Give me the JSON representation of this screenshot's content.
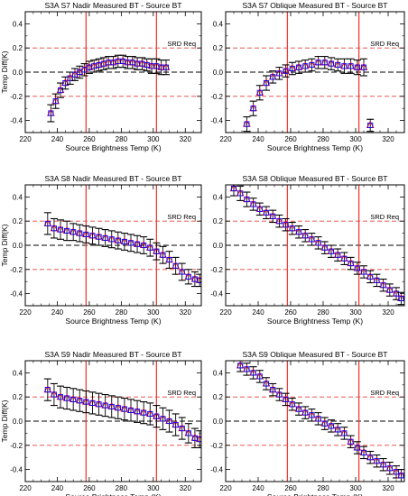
{
  "figure": {
    "srd_label": "SRD Req"
  },
  "style": {
    "error_bar": "#000000",
    "red_marker": "#ff0000",
    "blue_marker": "#0000ff",
    "vertical_line": "#e8413a",
    "srd_line": "#e8413a",
    "zero_line": "#000000"
  },
  "chart_data": [
    {
      "type": "scatter",
      "title": "S3A S7 Nadir Measured BT - Source BT",
      "xlabel": "Source Brightness Temp (K)",
      "ylabel": "Temp Diff(K)",
      "xlim": [
        220,
        330
      ],
      "ylim": [
        -0.5,
        0.5
      ],
      "xticks": [
        220,
        240,
        260,
        280,
        300,
        320
      ],
      "yticks": [
        -0.4,
        -0.2,
        0.0,
        0.2,
        0.4
      ],
      "vlines": [
        258,
        302
      ],
      "hlines_dashed_red": [
        0.2,
        -0.2
      ],
      "hline_dashed_black": 0.0,
      "annotation": "SRD Req",
      "x": [
        236,
        239,
        242,
        245,
        248,
        251,
        254,
        257,
        260,
        263,
        266,
        269,
        272,
        275,
        278,
        281,
        284,
        287,
        290,
        293,
        296,
        299,
        302,
        305,
        308
      ],
      "y": [
        -0.34,
        -0.24,
        -0.15,
        -0.09,
        -0.05,
        -0.02,
        0.0,
        0.02,
        0.04,
        0.05,
        0.06,
        0.07,
        0.08,
        0.08,
        0.09,
        0.09,
        0.08,
        0.08,
        0.07,
        0.07,
        0.06,
        0.05,
        0.05,
        0.04,
        0.04
      ],
      "err": [
        0.07,
        0.06,
        0.06,
        0.05,
        0.05,
        0.05,
        0.05,
        0.05,
        0.05,
        0.05,
        0.05,
        0.05,
        0.05,
        0.05,
        0.05,
        0.05,
        0.05,
        0.05,
        0.05,
        0.05,
        0.05,
        0.06,
        0.06,
        0.06,
        0.06
      ]
    },
    {
      "type": "scatter",
      "title": "S3A S7 Oblique Measured BT - Source BT",
      "xlabel": "Source Brightness Temp (K)",
      "ylabel": "",
      "xlim": [
        220,
        330
      ],
      "ylim": [
        -0.5,
        0.5
      ],
      "xticks": [
        220,
        240,
        260,
        280,
        300,
        320
      ],
      "yticks": [
        -0.4,
        -0.2,
        0.0,
        0.2,
        0.4
      ],
      "vlines": [
        258,
        302
      ],
      "hlines_dashed_red": [
        0.2,
        -0.2
      ],
      "hline_dashed_black": 0.0,
      "annotation": "SRD Req",
      "x": [
        233,
        237,
        241,
        245,
        249,
        253,
        257,
        261,
        265,
        269,
        273,
        277,
        281,
        285,
        289,
        293,
        297,
        301,
        305,
        309
      ],
      "y": [
        -0.43,
        -0.3,
        -0.17,
        -0.09,
        -0.04,
        -0.01,
        0.01,
        0.03,
        0.04,
        0.05,
        0.06,
        0.08,
        0.08,
        0.07,
        0.06,
        0.05,
        0.05,
        0.04,
        0.04,
        -0.44
      ],
      "err": [
        0.06,
        0.06,
        0.06,
        0.06,
        0.05,
        0.05,
        0.05,
        0.05,
        0.05,
        0.05,
        0.05,
        0.05,
        0.05,
        0.05,
        0.05,
        0.06,
        0.06,
        0.06,
        0.07,
        0.05
      ]
    },
    {
      "type": "scatter",
      "title": "S3A S8 Nadir Measured BT - Source BT",
      "xlabel": "Source Brightness Temp (K)",
      "ylabel": "Temp Diff(K)",
      "xlim": [
        220,
        330
      ],
      "ylim": [
        -0.5,
        0.5
      ],
      "xticks": [
        220,
        240,
        260,
        280,
        300,
        320
      ],
      "yticks": [
        -0.4,
        -0.2,
        0.0,
        0.2,
        0.4
      ],
      "vlines": [
        258,
        302
      ],
      "hlines_dashed_red": [
        0.2,
        -0.2
      ],
      "hline_dashed_black": 0.0,
      "annotation": "SRD Req",
      "x": [
        234,
        238,
        242,
        246,
        250,
        254,
        258,
        262,
        266,
        270,
        274,
        278,
        282,
        286,
        290,
        294,
        298,
        302,
        306,
        310,
        314,
        318,
        322,
        326,
        329
      ],
      "y": [
        0.18,
        0.14,
        0.13,
        0.12,
        0.11,
        0.1,
        0.09,
        0.08,
        0.07,
        0.06,
        0.05,
        0.04,
        0.03,
        0.02,
        0.01,
        0.0,
        -0.02,
        -0.05,
        -0.08,
        -0.12,
        -0.17,
        -0.22,
        -0.26,
        -0.28,
        -0.29
      ],
      "err": [
        0.09,
        0.08,
        0.08,
        0.08,
        0.07,
        0.07,
        0.07,
        0.07,
        0.07,
        0.07,
        0.07,
        0.07,
        0.07,
        0.07,
        0.07,
        0.07,
        0.07,
        0.07,
        0.07,
        0.07,
        0.07,
        0.07,
        0.06,
        0.06,
        0.05
      ]
    },
    {
      "type": "scatter",
      "title": "S3A S8 Oblique Measured BT - Source BT",
      "xlabel": "Source Brightness Temp (K)",
      "ylabel": "",
      "xlim": [
        220,
        330
      ],
      "ylim": [
        -0.5,
        0.5
      ],
      "xticks": [
        220,
        240,
        260,
        280,
        300,
        320
      ],
      "yticks": [
        -0.4,
        -0.2,
        0.0,
        0.2,
        0.4
      ],
      "vlines": [
        258,
        302
      ],
      "hlines_dashed_red": [
        0.2,
        -0.2
      ],
      "hline_dashed_black": 0.0,
      "annotation": "SRD Req",
      "x": [
        225,
        229,
        233,
        237,
        241,
        245,
        249,
        253,
        257,
        261,
        265,
        269,
        273,
        277,
        281,
        285,
        289,
        293,
        297,
        301,
        305,
        309,
        313,
        317,
        321,
        325,
        328
      ],
      "y": [
        0.47,
        0.43,
        0.38,
        0.34,
        0.3,
        0.27,
        0.24,
        0.2,
        0.17,
        0.14,
        0.11,
        0.08,
        0.05,
        0.02,
        -0.02,
        -0.05,
        -0.08,
        -0.11,
        -0.15,
        -0.19,
        -0.22,
        -0.26,
        -0.29,
        -0.33,
        -0.37,
        -0.4,
        -0.44
      ],
      "err": [
        0.06,
        0.06,
        0.06,
        0.05,
        0.05,
        0.05,
        0.05,
        0.05,
        0.05,
        0.05,
        0.05,
        0.05,
        0.05,
        0.05,
        0.05,
        0.05,
        0.05,
        0.05,
        0.05,
        0.05,
        0.05,
        0.05,
        0.05,
        0.05,
        0.05,
        0.05,
        0.05
      ]
    },
    {
      "type": "scatter",
      "title": "S3A S9 Nadir Measured BT - Source BT",
      "xlabel": "Source Brightness Temp (K)",
      "ylabel": "Temp Diff(K)",
      "xlim": [
        220,
        330
      ],
      "ylim": [
        -0.5,
        0.5
      ],
      "xticks": [
        220,
        240,
        260,
        280,
        300,
        320
      ],
      "yticks": [
        -0.4,
        -0.2,
        0.0,
        0.2,
        0.4
      ],
      "vlines": [
        258,
        302
      ],
      "hlines_dashed_red": [
        0.2,
        -0.2
      ],
      "hline_dashed_black": 0.0,
      "annotation": "SRD Req",
      "x": [
        234,
        238,
        242,
        246,
        250,
        254,
        258,
        262,
        266,
        270,
        274,
        278,
        282,
        286,
        290,
        294,
        298,
        302,
        306,
        310,
        314,
        318,
        322,
        326,
        329
      ],
      "y": [
        0.26,
        0.22,
        0.2,
        0.19,
        0.18,
        0.17,
        0.16,
        0.15,
        0.14,
        0.13,
        0.12,
        0.11,
        0.1,
        0.09,
        0.08,
        0.07,
        0.06,
        0.04,
        0.02,
        0.0,
        -0.03,
        -0.06,
        -0.1,
        -0.14,
        -0.15
      ],
      "err": [
        0.09,
        0.09,
        0.09,
        0.09,
        0.09,
        0.09,
        0.09,
        0.09,
        0.09,
        0.09,
        0.09,
        0.09,
        0.09,
        0.09,
        0.09,
        0.09,
        0.09,
        0.09,
        0.09,
        0.09,
        0.09,
        0.09,
        0.08,
        0.08,
        0.07
      ]
    },
    {
      "type": "scatter",
      "title": "S3A S9 Oblique Measured BT - Source BT",
      "xlabel": "Source Brightness Temp (K)",
      "ylabel": "",
      "xlim": [
        220,
        330
      ],
      "ylim": [
        -0.5,
        0.5
      ],
      "xticks": [
        220,
        240,
        260,
        280,
        300,
        320
      ],
      "yticks": [
        -0.4,
        -0.2,
        0.0,
        0.2,
        0.4
      ],
      "vlines": [
        258,
        302
      ],
      "hlines_dashed_red": [
        0.2,
        -0.2
      ],
      "hline_dashed_black": 0.0,
      "annotation": "SRD Req",
      "x": [
        229,
        233,
        237,
        241,
        245,
        249,
        253,
        257,
        261,
        265,
        269,
        273,
        277,
        281,
        285,
        289,
        293,
        297,
        301,
        305,
        309,
        313,
        317,
        321,
        325,
        328
      ],
      "y": [
        0.46,
        0.43,
        0.4,
        0.37,
        0.31,
        0.26,
        0.22,
        0.18,
        0.14,
        0.1,
        0.07,
        0.05,
        0.02,
        -0.02,
        -0.04,
        -0.07,
        -0.1,
        -0.17,
        -0.22,
        -0.26,
        -0.3,
        -0.33,
        -0.36,
        -0.39,
        -0.42,
        -0.45
      ],
      "err": [
        0.05,
        0.05,
        0.05,
        0.05,
        0.05,
        0.05,
        0.05,
        0.05,
        0.05,
        0.05,
        0.05,
        0.05,
        0.05,
        0.05,
        0.05,
        0.05,
        0.05,
        0.05,
        0.05,
        0.05,
        0.05,
        0.05,
        0.05,
        0.05,
        0.05,
        0.05
      ]
    }
  ]
}
